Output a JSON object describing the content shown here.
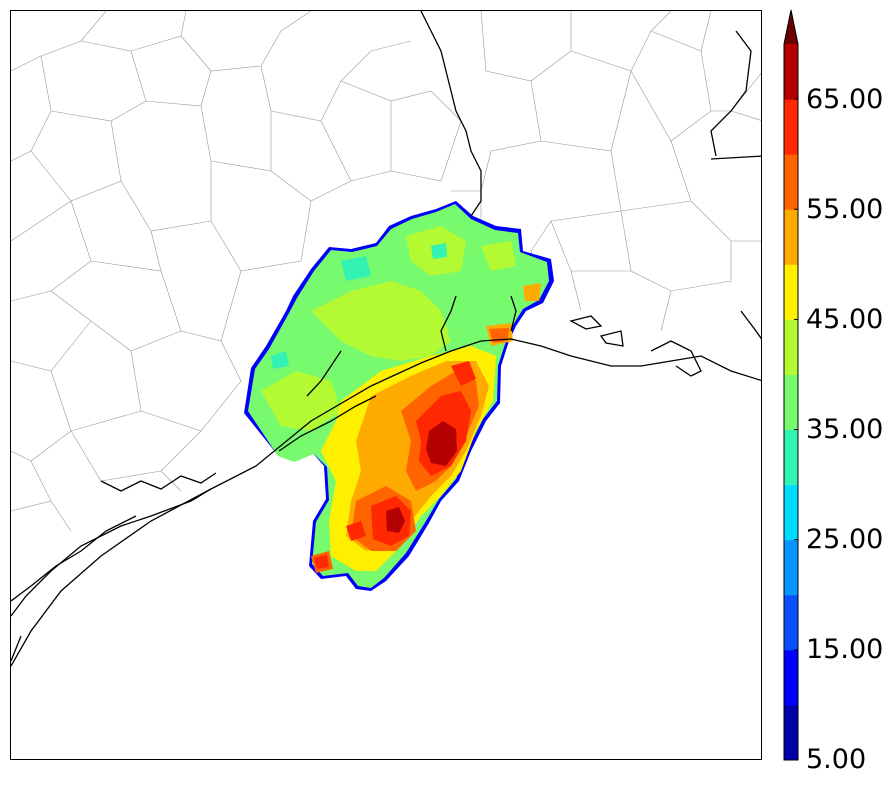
{
  "map": {
    "region": "Upper Texas and Louisiana Gulf Coast",
    "field": "reflectivity-like filled contours",
    "background": "#ffffff"
  },
  "colorbar": {
    "levels": [
      5,
      10,
      15,
      20,
      25,
      30,
      35,
      40,
      45,
      50,
      55,
      60,
      65,
      70
    ],
    "colors": [
      "#0000a8",
      "#0000ff",
      "#0a50ff",
      "#0a96ff",
      "#00dcff",
      "#32f2b4",
      "#78fa6e",
      "#b4fa32",
      "#fff000",
      "#ffaa00",
      "#ff6400",
      "#ff2800",
      "#b40000"
    ],
    "extend_color": "#6a0000",
    "labels": [
      "5.00",
      "15.00",
      "25.00",
      "35.00",
      "45.00",
      "55.00",
      "65.00"
    ]
  },
  "chart_data": {
    "type": "heatmap",
    "colorbar_ticks": [
      5.0,
      15.0,
      25.0,
      35.0,
      45.0,
      55.0,
      65.0
    ],
    "colorbar_range": [
      5,
      70
    ],
    "colorbar_extend": "max"
  }
}
